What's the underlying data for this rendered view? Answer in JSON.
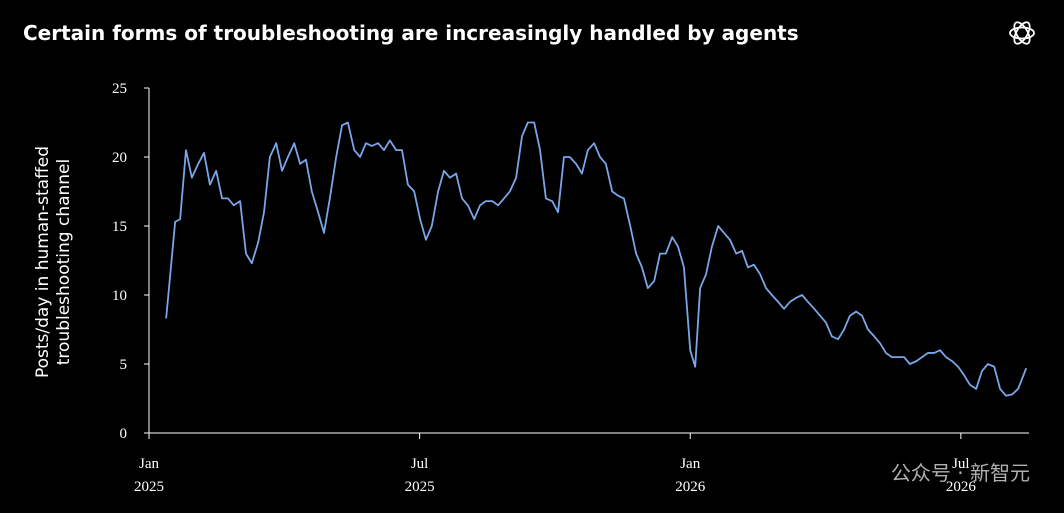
{
  "chart_data": {
    "type": "line",
    "title": "Certain forms of troubleshooting are increasingly handled by agents",
    "y_label": [
      "Posts/day in human-staffed",
      "troubleshooting channel"
    ],
    "watermark": "公众号 · 新智元",
    "x": [
      0.38,
      0.58,
      0.69,
      0.82,
      0.95,
      1.09,
      1.22,
      1.35,
      1.49,
      1.62,
      1.75,
      1.88,
      2.02,
      2.15,
      2.28,
      2.42,
      2.55,
      2.68,
      2.82,
      2.95,
      3.08,
      3.22,
      3.35,
      3.48,
      3.61,
      3.75,
      3.88,
      4.01,
      4.15,
      4.28,
      4.41,
      4.55,
      4.68,
      4.81,
      4.94,
      5.08,
      5.21,
      5.34,
      5.48,
      5.61,
      5.74,
      5.88,
      6.01,
      6.14,
      6.27,
      6.41,
      6.54,
      6.67,
      6.81,
      6.94,
      7.07,
      7.21,
      7.34,
      7.47,
      7.61,
      7.74,
      7.87,
      8.0,
      8.14,
      8.27,
      8.4,
      8.54,
      8.67,
      8.8,
      8.94,
      9.07,
      9.2,
      9.33,
      9.47,
      9.6,
      9.73,
      9.87,
      10.0,
      10.13,
      10.27,
      10.4,
      10.53,
      10.67,
      10.8,
      10.93,
      11.06,
      11.2,
      11.33,
      11.46,
      11.6,
      11.73,
      11.86,
      12.0,
      12.11,
      12.22,
      12.35,
      12.48,
      12.62,
      12.75,
      12.88,
      13.02,
      13.15,
      13.28,
      13.41,
      13.55,
      13.68,
      13.81,
      13.95,
      14.08,
      14.21,
      14.35,
      14.48,
      14.61,
      14.75,
      14.88,
      15.01,
      15.14,
      15.28,
      15.41,
      15.54,
      15.68,
      15.81,
      15.94,
      16.08,
      16.21,
      16.34,
      16.47,
      16.61,
      16.74,
      16.87,
      17.01,
      17.14,
      17.27,
      17.41,
      17.54,
      17.67,
      17.81,
      17.94,
      18.07,
      18.2,
      18.34,
      18.47,
      18.6,
      18.74,
      18.87,
      19.0,
      19.14,
      19.27,
      19.45
    ],
    "series": [
      {
        "color": "#7aa6e8",
        "values": [
          8.3,
          15.3,
          15.5,
          20.5,
          18.5,
          19.5,
          20.3,
          18,
          19,
          17,
          17,
          16.5,
          16.8,
          13,
          12.3,
          13.8,
          16,
          20,
          21,
          19,
          20,
          21,
          19.5,
          19.8,
          17.5,
          16,
          14.5,
          17,
          20,
          22.3,
          22.5,
          20.5,
          20,
          21,
          20.8,
          21,
          20.5,
          21.2,
          20.5,
          20.5,
          18,
          17.5,
          15.5,
          14,
          15,
          17.5,
          19,
          18.5,
          18.8,
          17,
          16.5,
          15.5,
          16.5,
          16.8,
          16.8,
          16.5,
          17,
          17.5,
          18.5,
          21.5,
          22.5,
          22.5,
          20.5,
          17,
          16.8,
          16,
          20,
          20,
          19.5,
          18.8,
          20.5,
          21,
          20,
          19.5,
          17.5,
          17.2,
          17,
          15,
          13,
          12,
          10.5,
          11,
          13,
          13,
          14.2,
          13.5,
          12,
          6,
          4.8,
          10.5,
          11.5,
          13.5,
          15,
          14.5,
          14,
          13,
          13.2,
          12,
          12.2,
          11.5,
          10.5,
          10,
          9.5,
          9,
          9.5,
          9.8,
          10,
          9.5,
          9,
          8.5,
          8,
          7,
          6.8,
          7.5,
          8.5,
          8.8,
          8.5,
          7.5,
          7,
          6.5,
          5.8,
          5.5,
          5.5,
          5.5,
          5,
          5.2,
          5.5,
          5.8,
          5.8,
          6,
          5.5,
          5.2,
          4.8,
          4.2,
          3.5,
          3.2,
          4.5,
          5,
          4.8,
          3.2,
          2.7,
          2.8,
          3.2,
          4.7
        ]
      }
    ],
    "xlim": [
      0,
      19.5
    ],
    "xticks": [
      {
        "value": 0,
        "label": [
          "Jan",
          "2025"
        ]
      },
      {
        "value": 6,
        "label": [
          "Jul",
          "2025"
        ]
      },
      {
        "value": 12,
        "label": [
          "Jan",
          "2026"
        ]
      },
      {
        "value": 18,
        "label": [
          "Jul",
          "2026"
        ]
      }
    ],
    "ylim": [
      0,
      25
    ],
    "yticks": [
      0,
      5,
      10,
      15,
      20,
      25
    ]
  }
}
